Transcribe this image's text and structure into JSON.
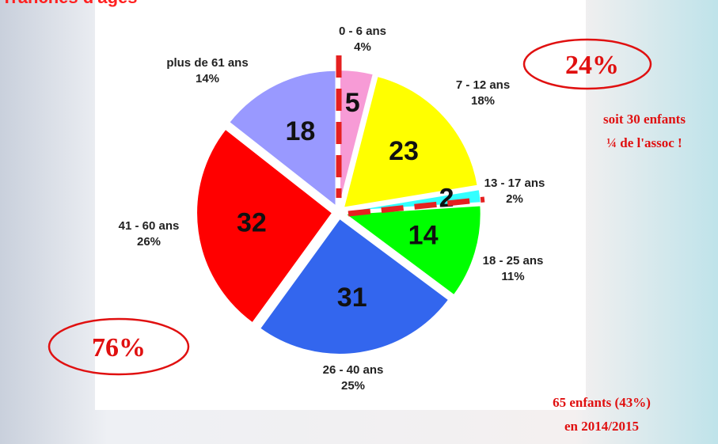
{
  "chart_data": {
    "type": "pie",
    "title": "Tranches d'âges",
    "categories": [
      "0 - 6 ans",
      "7 - 12 ans",
      "13 - 17 ans",
      "18 - 25 ans",
      "26 - 40 ans",
      "41 - 60 ans",
      "plus de 61 ans"
    ],
    "values": [
      5,
      23,
      2,
      14,
      31,
      32,
      18
    ],
    "colors": [
      "#f79bd6",
      "#ffff00",
      "#33ffff",
      "#00ff00",
      "#3366ee",
      "#ff0000",
      "#9999ff"
    ],
    "shares": [
      4,
      18,
      2,
      11,
      25,
      26,
      14
    ],
    "share_labels": [
      "4%",
      "18%",
      "2%",
      "11%",
      "25%",
      "26%",
      "14%"
    ],
    "annotations": [
      "24%",
      "76%",
      "soit 30 enfants",
      "¼ de l'assoc !",
      "65 enfants (43%)",
      "en 2014/2015"
    ]
  }
}
